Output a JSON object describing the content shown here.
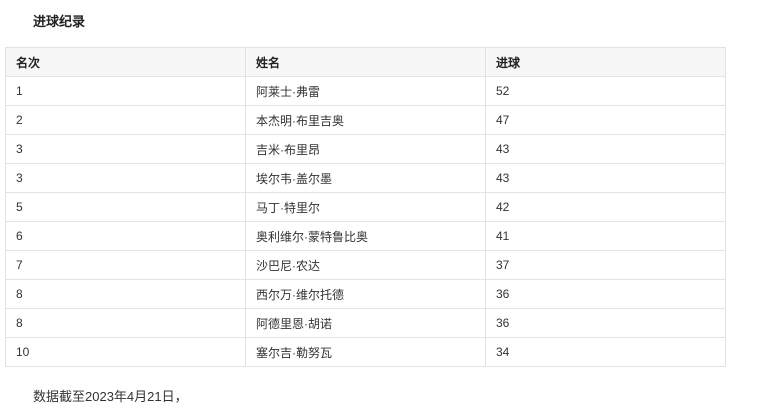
{
  "title": "进球纪录",
  "table": {
    "headers": [
      "名次",
      "姓名",
      "进球"
    ],
    "rows": [
      [
        "1",
        "阿莱士·弗雷",
        "52"
      ],
      [
        "2",
        "本杰明·布里吉奥",
        "47"
      ],
      [
        "3",
        "吉米·布里昂",
        "43"
      ],
      [
        "3",
        "埃尔韦·盖尔墨",
        "43"
      ],
      [
        "5",
        "马丁·特里尔",
        "42"
      ],
      [
        "6",
        "奥利维尔·蒙特鲁比奥",
        "41"
      ],
      [
        "7",
        "沙巴尼·农达",
        "37"
      ],
      [
        "8",
        "西尔万·维尔托德",
        "36"
      ],
      [
        "8",
        "阿德里恩·胡诺",
        "36"
      ],
      [
        "10",
        "塞尔吉·勒努瓦",
        "34"
      ]
    ]
  },
  "note": "数据截至2023年4月21日，"
}
